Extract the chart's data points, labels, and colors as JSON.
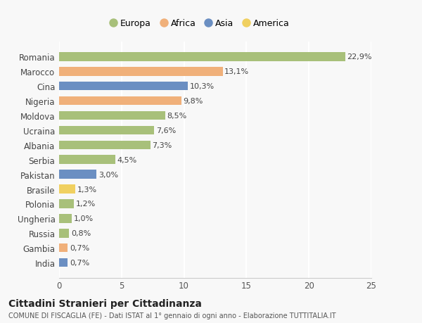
{
  "countries": [
    "Romania",
    "Marocco",
    "Cina",
    "Nigeria",
    "Moldova",
    "Ucraina",
    "Albania",
    "Serbia",
    "Pakistan",
    "Brasile",
    "Polonia",
    "Ungheria",
    "Russia",
    "Gambia",
    "India"
  ],
  "values": [
    22.9,
    13.1,
    10.3,
    9.8,
    8.5,
    7.6,
    7.3,
    4.5,
    3.0,
    1.3,
    1.2,
    1.0,
    0.8,
    0.7,
    0.7
  ],
  "labels": [
    "22,9%",
    "13,1%",
    "10,3%",
    "9,8%",
    "8,5%",
    "7,6%",
    "7,3%",
    "4,5%",
    "3,0%",
    "1,3%",
    "1,2%",
    "1,0%",
    "0,8%",
    "0,7%",
    "0,7%"
  ],
  "continents": [
    "Europa",
    "Africa",
    "Asia",
    "Africa",
    "Europa",
    "Europa",
    "Europa",
    "Europa",
    "Asia",
    "America",
    "Europa",
    "Europa",
    "Europa",
    "Africa",
    "Asia"
  ],
  "colors": {
    "Europa": "#a8c07a",
    "Africa": "#f0b07a",
    "Asia": "#6b8fc2",
    "America": "#f0d060"
  },
  "title": "Cittadini Stranieri per Cittadinanza",
  "subtitle": "COMUNE DI FISCAGLIA (FE) - Dati ISTAT al 1° gennaio di ogni anno - Elaborazione TUTTITALIA.IT",
  "xlim": [
    0,
    25
  ],
  "xticks": [
    0,
    5,
    10,
    15,
    20,
    25
  ],
  "background_color": "#f8f8f8",
  "bar_alpha": 1.0
}
